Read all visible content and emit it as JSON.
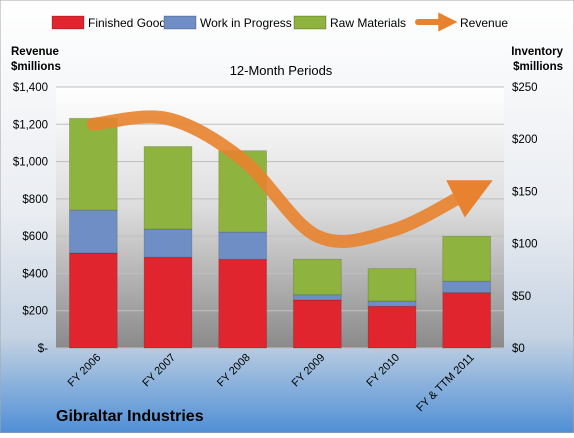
{
  "chart_data": {
    "type": "bar",
    "company": "Gibraltar Industries",
    "title": "12-Month Periods",
    "left_axis": {
      "title_line1": "Revenue",
      "title_line2": "$millions",
      "range": [
        0,
        1400
      ],
      "ticks": [
        "$-",
        "$200",
        "$400",
        "$600",
        "$800",
        "$1,000",
        "$1,200",
        "$1,400"
      ]
    },
    "right_axis": {
      "title_line1": "Inventory",
      "title_line2": "$millions",
      "range": [
        0,
        250
      ],
      "ticks": [
        "$0",
        "$50",
        "$100",
        "$150",
        "$200",
        "$250"
      ]
    },
    "categories": [
      "FY 2006",
      "FY 2007",
      "FY 2008",
      "FY 2009",
      "FY 2010",
      "FY & TTM 2011"
    ],
    "stacked": true,
    "series": [
      {
        "name": "Finished Goods",
        "axis": "right",
        "color": "#e0252e",
        "values": [
          91,
          87,
          85,
          46,
          40,
          53
        ]
      },
      {
        "name": "Work in Progress",
        "axis": "right",
        "color": "#6f8ec6",
        "values": [
          41,
          27,
          26,
          5,
          5,
          11
        ]
      },
      {
        "name": "Raw Materials",
        "axis": "right",
        "color": "#8fb33f",
        "values": [
          88,
          79,
          78,
          34,
          31,
          43
        ]
      },
      {
        "name": "Revenue",
        "axis": "left",
        "type": "line",
        "color": "#e8822e",
        "values": [
          1200,
          1230,
          1010,
          600,
          630,
          830
        ]
      }
    ],
    "legend_position": "top",
    "grid": true
  }
}
